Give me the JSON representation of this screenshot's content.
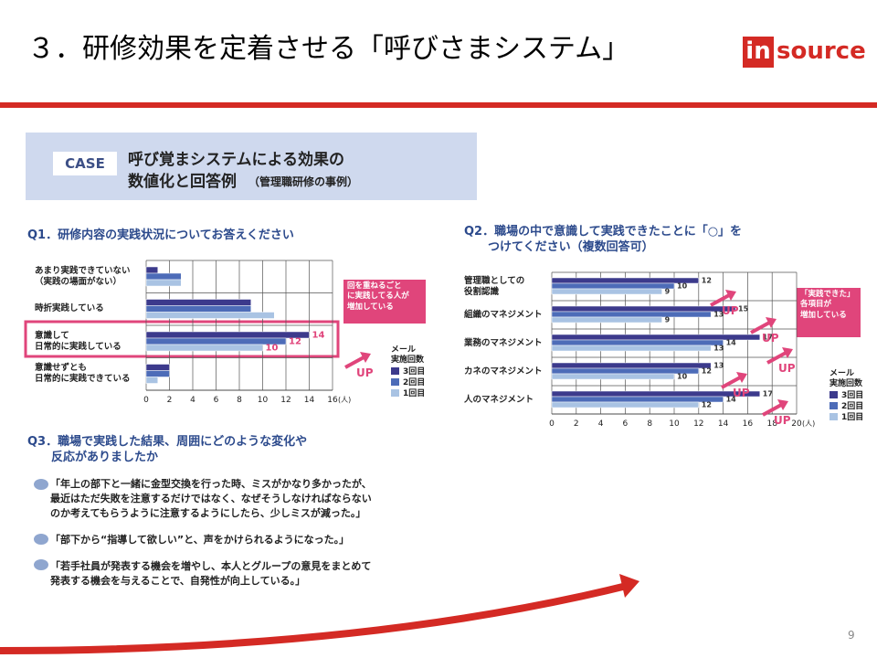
{
  "header": {
    "title": "３．研修効果を定着させる「呼びさまシステム」",
    "logo_in": "in",
    "logo_rest": "source"
  },
  "case": {
    "tag": "CASE",
    "line1": "呼び覚まシステムによる効果の",
    "line2": "数値化と回答例",
    "note": "（管理職研修の事例）"
  },
  "chart_data": [
    {
      "type": "hbar",
      "title": "Q1．研修内容の実践状況についてお答えください",
      "categories": [
        "あまり実践できていない\n（実践の場面がない）",
        "時折実践している",
        "意識して\n日常的に実践している",
        "意識せずとも\n日常的に実践できている"
      ],
      "series": [
        {
          "name": "3回目",
          "color": "#3c3a8c",
          "values": [
            1,
            9,
            14,
            2
          ]
        },
        {
          "name": "2回目",
          "color": "#4d6cb8",
          "values": [
            3,
            9,
            12,
            2
          ]
        },
        {
          "name": "1回目",
          "color": "#a9c3e3",
          "values": [
            3,
            11,
            10,
            1
          ]
        }
      ],
      "labeled_categories": [
        2
      ],
      "value_label_color": "#e0457b",
      "xlim": [
        0,
        16
      ],
      "xticks": [
        0,
        2,
        4,
        6,
        8,
        10,
        12,
        14,
        16
      ],
      "unit": "(人)",
      "grid": true,
      "legend_title": "メール\n実施回数",
      "callout": "回を重ねるごと\nに実践してる人が\n増加している",
      "up_label": "UP"
    },
    {
      "type": "hbar",
      "title": "Q2．職場の中で意識して実践できたことに「○」を\n　　つけてください（複数回答可）",
      "categories": [
        "管理職としての\n役割認識",
        "組織のマネジメント",
        "業務のマネジメント",
        "カネのマネジメント",
        "人のマネジメント"
      ],
      "series": [
        {
          "name": "3回目",
          "color": "#3c3a8c",
          "values": [
            12,
            15,
            17,
            13,
            17
          ]
        },
        {
          "name": "2回目",
          "color": "#4d6cb8",
          "values": [
            10,
            13,
            14,
            12,
            14
          ]
        },
        {
          "name": "1回目",
          "color": "#a9c3e3",
          "values": [
            9,
            9,
            13,
            10,
            12
          ]
        }
      ],
      "labeled_categories": [
        0,
        1,
        2,
        3,
        4
      ],
      "value_label_color": "#333333",
      "xlim": [
        0,
        20
      ],
      "xticks": [
        0,
        2,
        4,
        6,
        8,
        10,
        12,
        14,
        16,
        18,
        20
      ],
      "unit": "(人)",
      "grid": true,
      "legend_title": "メール\n実施回数",
      "callout": "「実践できた」\n各項目が\n増加している",
      "up_label": "UP"
    }
  ],
  "q3": {
    "title": "Q3．職場で実践した結果、周囲にどのような変化や\n　　反応がありましたか",
    "answers": [
      "「年上の部下と一緒に金型交換を行った時、ミスがかなり多かったが、\n最近はただ失敗を注意するだけではなく、なぜそうしなければならない\nのか考えてもらうように注意するようにしたら、少しミスが減った。」",
      "「部下から“指導して欲しい”と、声をかけられるようになった。」",
      "「若手社員が発表する機会を増やし、本人とグループの意見をまとめて\n発表する機会を与えることで、自発性が向上している。」"
    ]
  },
  "page_number": "9"
}
